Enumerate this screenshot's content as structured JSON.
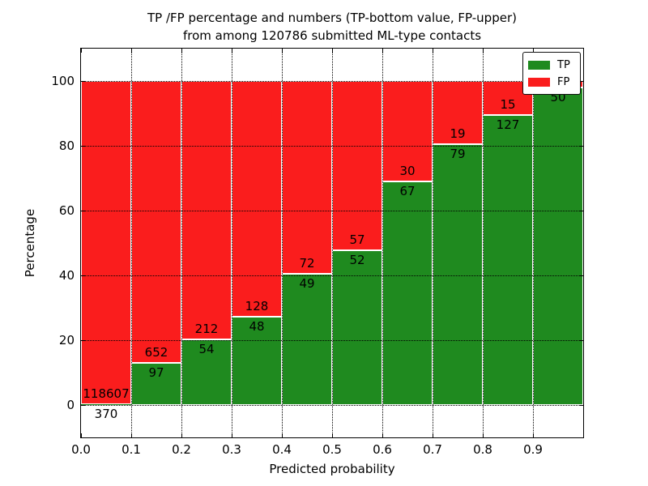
{
  "title": {
    "line1": "TP /FP percentage and numbers (TP-bottom value, FP-upper)",
    "line2": "from among 120786 submitted ML-type contacts"
  },
  "chart_data": {
    "type": "bar",
    "stacked": true,
    "title": "TP /FP percentage and numbers (TP-bottom value, FP-upper) from among 120786 submitted ML-type contacts",
    "total_contacts": 120786,
    "xlabel": "Predicted probability",
    "ylabel": "Percentage",
    "xlim": [
      0.0,
      1.0
    ],
    "ylim": [
      -10,
      110
    ],
    "grid": "dotted",
    "legend_position": "upper right",
    "x_tick_labels": [
      "0.0",
      "0.1",
      "0.2",
      "0.3",
      "0.4",
      "0.5",
      "0.6",
      "0.7",
      "0.8",
      "0.9"
    ],
    "y_tick_labels": [
      "0",
      "20",
      "40",
      "60",
      "80",
      "100"
    ],
    "y_tick_values": [
      0,
      20,
      40,
      60,
      80,
      100
    ],
    "legend": [
      {
        "label": "TP",
        "color": "#1f8a1f"
      },
      {
        "label": "FP",
        "color": "#fa1d1d"
      }
    ],
    "bars": [
      {
        "bin": "0.0-0.1",
        "tp": 370,
        "fp": 118607,
        "tp_pct": 0.31,
        "tp_label": "370",
        "fp_label": "118607"
      },
      {
        "bin": "0.1-0.2",
        "tp": 97,
        "fp": 652,
        "tp_pct": 12.95,
        "tp_label": "97",
        "fp_label": "652"
      },
      {
        "bin": "0.2-0.3",
        "tp": 54,
        "fp": 212,
        "tp_pct": 20.3,
        "tp_label": "54",
        "fp_label": "212"
      },
      {
        "bin": "0.3-0.4",
        "tp": 48,
        "fp": 128,
        "tp_pct": 27.27,
        "tp_label": "48",
        "fp_label": "128"
      },
      {
        "bin": "0.4-0.5",
        "tp": 49,
        "fp": 72,
        "tp_pct": 40.5,
        "tp_label": "49",
        "fp_label": "72"
      },
      {
        "bin": "0.5-0.6",
        "tp": 52,
        "fp": 57,
        "tp_pct": 47.71,
        "tp_label": "52",
        "fp_label": "57"
      },
      {
        "bin": "0.6-0.7",
        "tp": 67,
        "fp": 30,
        "tp_pct": 69.07,
        "tp_label": "67",
        "fp_label": "30"
      },
      {
        "bin": "0.7-0.8",
        "tp": 79,
        "fp": 19,
        "tp_pct": 80.61,
        "tp_label": "79",
        "fp_label": "19"
      },
      {
        "bin": "0.8-0.9",
        "tp": 127,
        "fp": 15,
        "tp_pct": 89.44,
        "tp_label": "127",
        "fp_label": "15"
      },
      {
        "bin": "0.9-1.0",
        "tp": 50,
        "fp": null,
        "tp_pct": 98.0,
        "tp_label": "50",
        "fp_label": ""
      }
    ]
  }
}
